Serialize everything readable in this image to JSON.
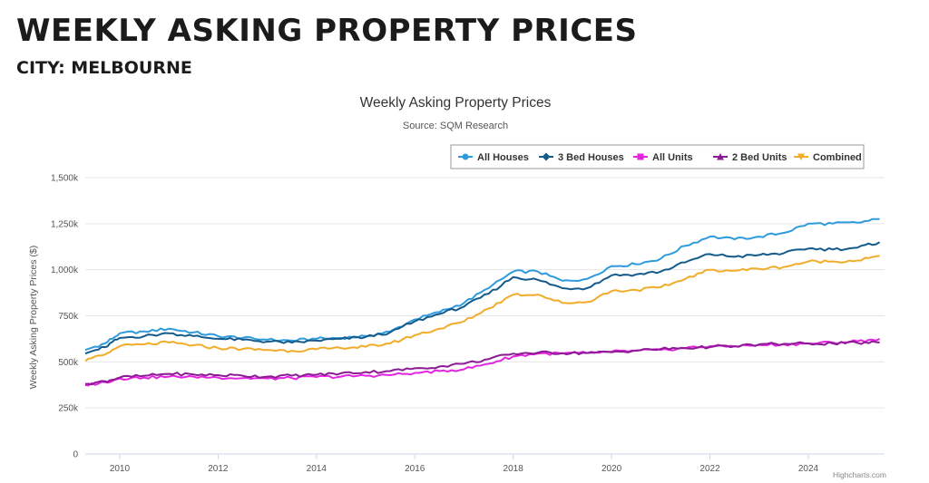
{
  "page": {
    "title": "WEEKLY ASKING PROPERTY PRICES",
    "subtitle": "CITY: MELBOURNE"
  },
  "chart_data": {
    "type": "line",
    "title": "Weekly Asking Property Prices",
    "subtitle": "Source: SQM Research",
    "xlabel": "",
    "ylabel": "Weekly Asking Property Prices ($)",
    "xlim": [
      2009.3,
      2025.55
    ],
    "ylim": [
      0,
      1500000
    ],
    "x_ticks": [
      2010,
      2012,
      2014,
      2016,
      2018,
      2020,
      2022,
      2024
    ],
    "x_tick_labels": [
      "2010",
      "2012",
      "2014",
      "2016",
      "2018",
      "2020",
      "2022",
      "2024"
    ],
    "y_ticks": [
      0,
      250000,
      500000,
      750000,
      1000000,
      1250000,
      1500000
    ],
    "y_tick_labels": [
      "0",
      "250k",
      "500k",
      "750k",
      "1,000k",
      "1,250k",
      "1,500k"
    ],
    "grid": "horizontal",
    "legend_position": "top-right",
    "credit": "Highcharts.com",
    "x": [
      2009.3,
      2009.7,
      2010.0,
      2010.5,
      2011.0,
      2011.5,
      2012.0,
      2012.5,
      2013.0,
      2013.5,
      2014.0,
      2014.5,
      2015.0,
      2015.5,
      2016.0,
      2016.5,
      2017.0,
      2017.5,
      2018.0,
      2018.5,
      2019.0,
      2019.5,
      2020.0,
      2020.5,
      2021.0,
      2021.5,
      2022.0,
      2022.5,
      2023.0,
      2023.5,
      2024.0,
      2024.5,
      2025.0,
      2025.45
    ],
    "series": [
      {
        "name": "All Houses",
        "color": "#2f9bdc",
        "marker": "circle",
        "values": [
          565000,
          600000,
          655000,
          665000,
          680000,
          660000,
          640000,
          630000,
          620000,
          615000,
          625000,
          630000,
          640000,
          665000,
          730000,
          770000,
          820000,
          900000,
          990000,
          990000,
          940000,
          950000,
          1020000,
          1030000,
          1060000,
          1130000,
          1180000,
          1165000,
          1180000,
          1200000,
          1250000,
          1250000,
          1255000,
          1275000
        ]
      },
      {
        "name": "3 Bed Houses",
        "color": "#145b8c",
        "marker": "diamond",
        "values": [
          545000,
          580000,
          630000,
          640000,
          655000,
          640000,
          625000,
          620000,
          610000,
          605000,
          615000,
          625000,
          635000,
          660000,
          720000,
          760000,
          800000,
          870000,
          960000,
          945000,
          900000,
          900000,
          970000,
          975000,
          990000,
          1040000,
          1085000,
          1070000,
          1080000,
          1090000,
          1115000,
          1110000,
          1120000,
          1150000
        ]
      },
      {
        "name": "All Units",
        "color": "#e324e0",
        "marker": "square",
        "values": [
          375000,
          390000,
          410000,
          415000,
          420000,
          420000,
          415000,
          412000,
          410000,
          412000,
          418000,
          420000,
          425000,
          428000,
          440000,
          450000,
          460000,
          490000,
          530000,
          545000,
          545000,
          548000,
          555000,
          560000,
          565000,
          575000,
          585000,
          585000,
          592000,
          595000,
          600000,
          605000,
          612000,
          625000
        ]
      },
      {
        "name": "2 Bed Units",
        "color": "#8b1a94",
        "marker": "triangle",
        "values": [
          380000,
          395000,
          415000,
          425000,
          435000,
          432000,
          428000,
          425000,
          420000,
          425000,
          430000,
          438000,
          445000,
          450000,
          465000,
          475000,
          490000,
          515000,
          545000,
          550000,
          548000,
          548000,
          552000,
          562000,
          570000,
          575000,
          580000,
          585000,
          595000,
          598000,
          600000,
          600000,
          603000,
          605000
        ]
      },
      {
        "name": "Combined",
        "color": "#f1ac2a",
        "marker": "triangle-down",
        "values": [
          505000,
          540000,
          585000,
          595000,
          605000,
          590000,
          575000,
          570000,
          565000,
          560000,
          568000,
          575000,
          582000,
          600000,
          645000,
          680000,
          720000,
          790000,
          865000,
          865000,
          820000,
          825000,
          885000,
          890000,
          905000,
          950000,
          1000000,
          995000,
          1005000,
          1015000,
          1045000,
          1045000,
          1050000,
          1075000
        ]
      }
    ]
  }
}
